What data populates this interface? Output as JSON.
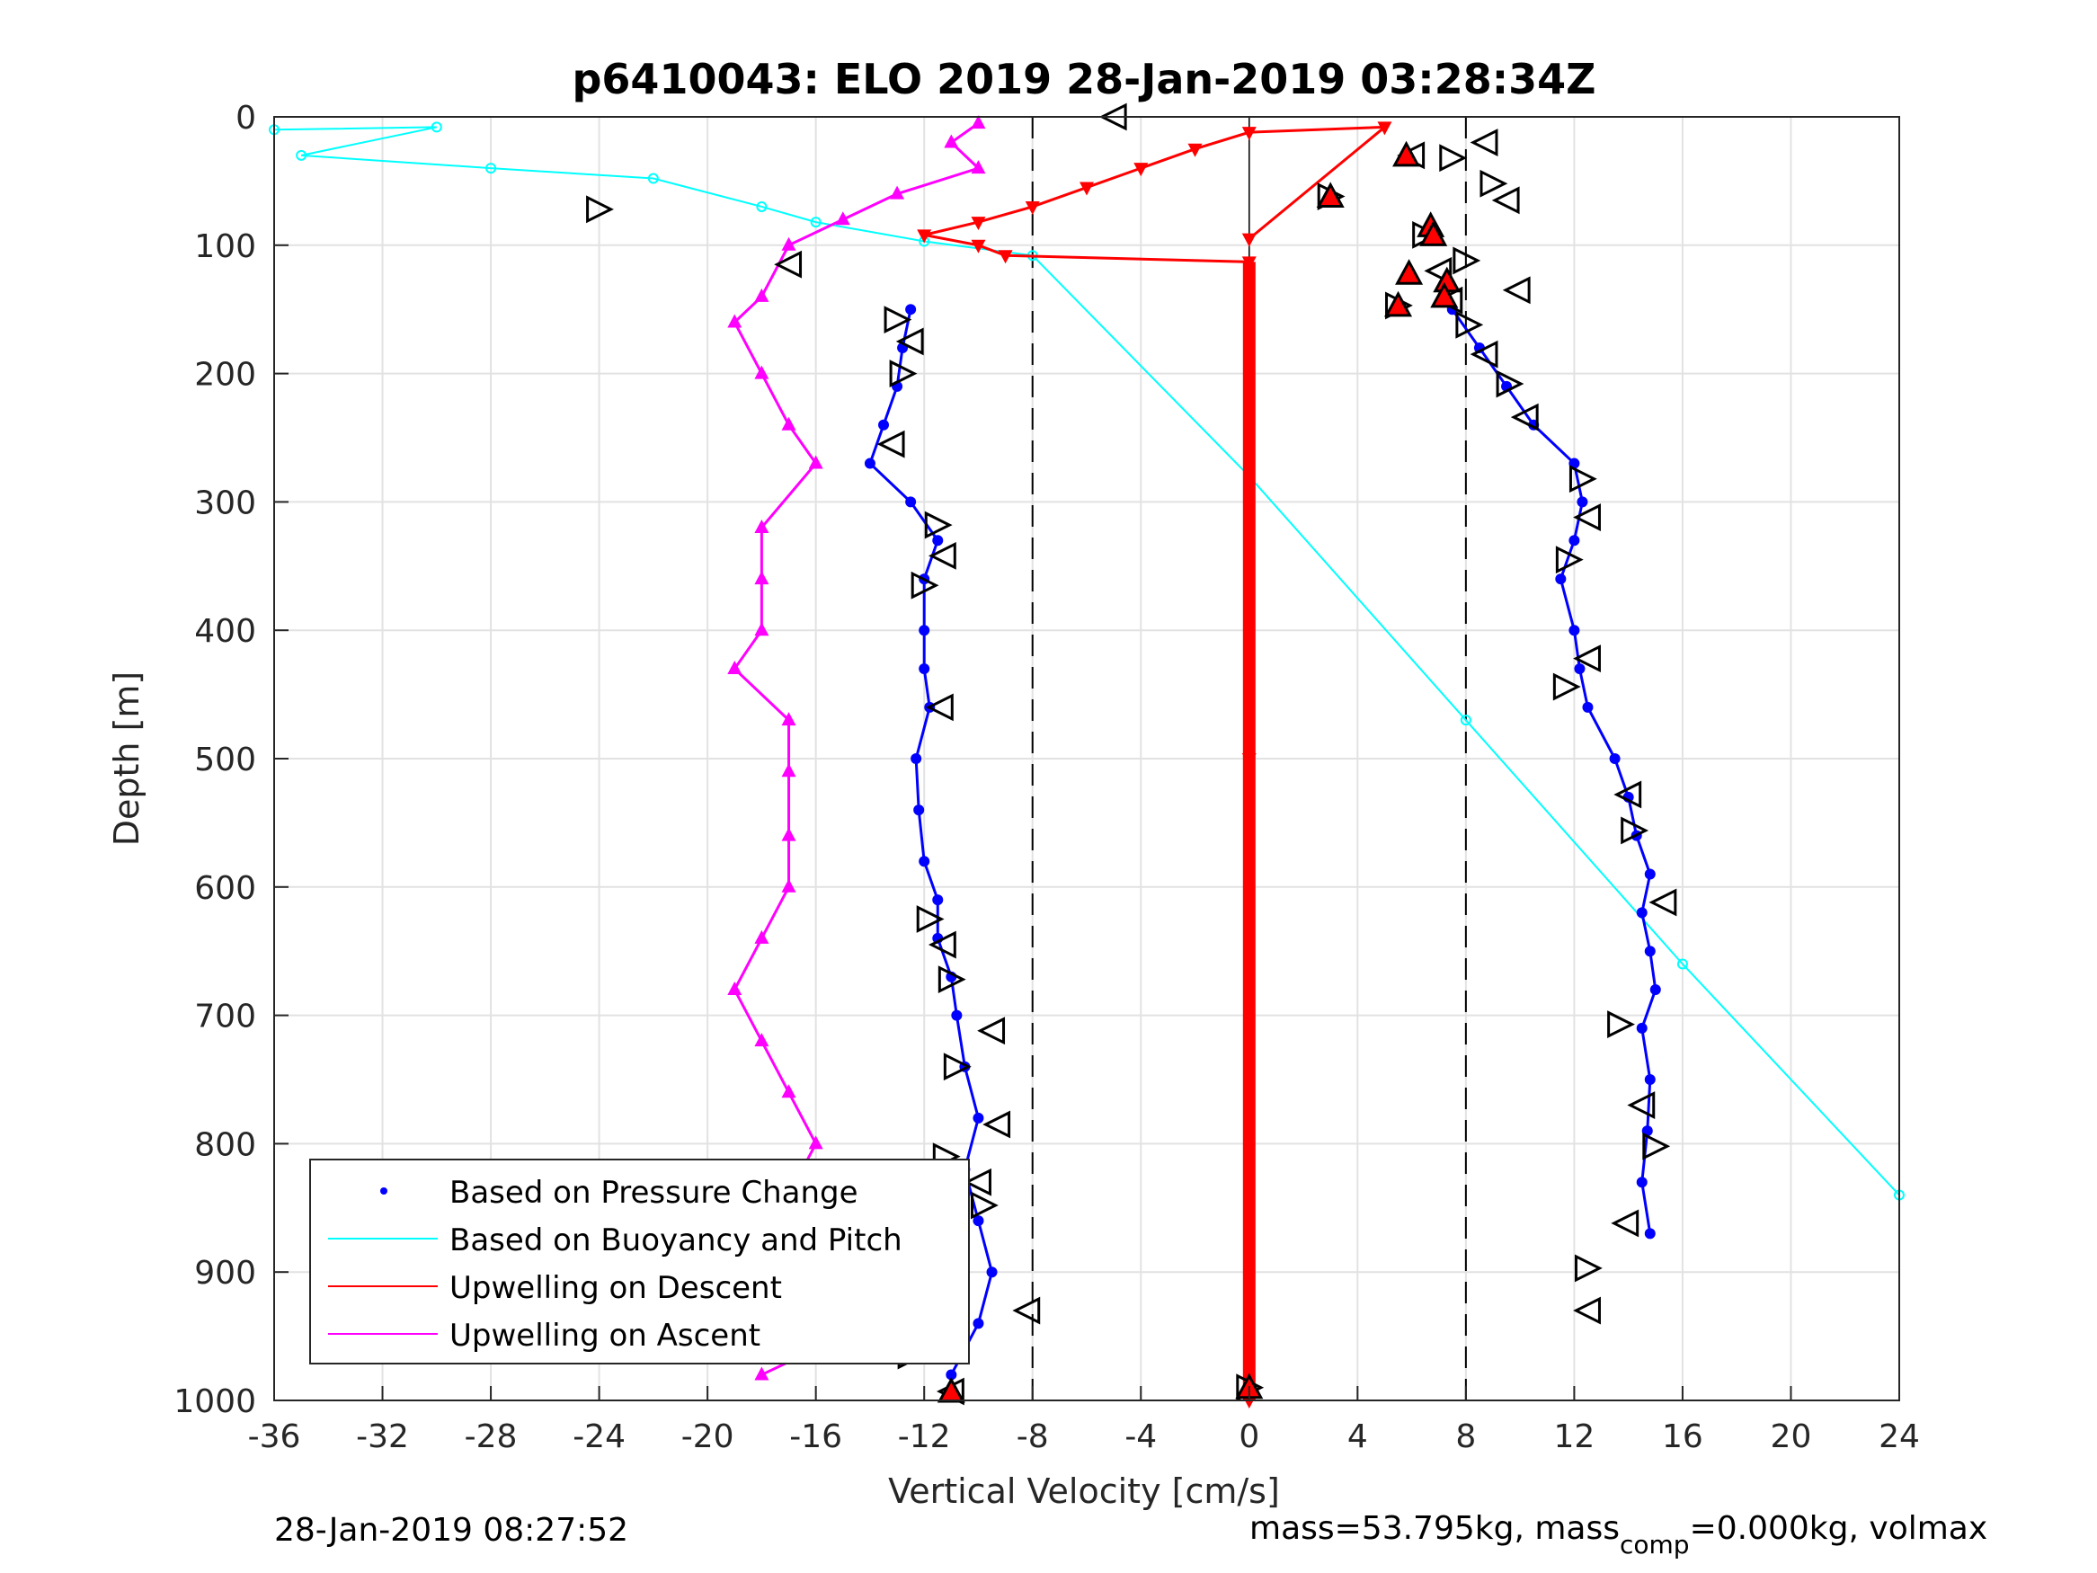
{
  "chart_data": {
    "type": "scatter",
    "title": "p6410043: ELO 2019 28-Jan-2019 03:28:34Z",
    "xlabel": "Vertical Velocity [cm/s]",
    "ylabel": "Depth [m]",
    "xlim": [
      -36,
      24
    ],
    "ylim": [
      1000,
      0
    ],
    "y_reversed": true,
    "grid": true,
    "x_ticks": [
      "-36",
      "-32",
      "-28",
      "-24",
      "-20",
      "-16",
      "-12",
      "-8",
      "-4",
      "0",
      "4",
      "8",
      "12",
      "16",
      "20",
      "24"
    ],
    "y_ticks": [
      "0",
      "100",
      "200",
      "300",
      "400",
      "500",
      "600",
      "700",
      "800",
      "900",
      "1000"
    ],
    "reference_lines": {
      "dashed_x": [
        -8,
        8
      ],
      "solid_x": [
        0
      ]
    },
    "legend": {
      "position": "lower-left",
      "entries": [
        "Based on Pressure Change",
        "Based on Buoyancy and Pitch",
        "Upwelling on Descent",
        "Upwelling on Ascent"
      ]
    },
    "colors": {
      "pressure": "#0000ff",
      "buoyancy": "#00ffff",
      "upwell_descent": "#ff0000",
      "upwell_ascent": "#ff00ff"
    },
    "series": [
      {
        "name": "Based on Pressure Change",
        "profile": "descent",
        "points": [
          [
            -12.5,
            150
          ],
          [
            -12.8,
            180
          ],
          [
            -13.0,
            210
          ],
          [
            -13.5,
            240
          ],
          [
            -14.0,
            270
          ],
          [
            -12.5,
            300
          ],
          [
            -11.5,
            330
          ],
          [
            -12.0,
            360
          ],
          [
            -12.0,
            400
          ],
          [
            -12.0,
            430
          ],
          [
            -11.8,
            460
          ],
          [
            -12.3,
            500
          ],
          [
            -12.2,
            540
          ],
          [
            -12.0,
            580
          ],
          [
            -11.5,
            610
          ],
          [
            -11.5,
            640
          ],
          [
            -11.0,
            670
          ],
          [
            -10.8,
            700
          ],
          [
            -10.5,
            740
          ],
          [
            -10.0,
            780
          ],
          [
            -10.5,
            820
          ],
          [
            -10.0,
            860
          ],
          [
            -9.5,
            900
          ],
          [
            -10.0,
            940
          ],
          [
            -11.0,
            980
          ]
        ]
      },
      {
        "name": "Based on Pressure Change",
        "profile": "ascent",
        "points": [
          [
            7.5,
            150
          ],
          [
            8.5,
            180
          ],
          [
            9.5,
            210
          ],
          [
            10.5,
            240
          ],
          [
            12.0,
            270
          ],
          [
            12.3,
            300
          ],
          [
            12.0,
            330
          ],
          [
            11.5,
            360
          ],
          [
            12.0,
            400
          ],
          [
            12.2,
            430
          ],
          [
            12.5,
            460
          ],
          [
            13.5,
            500
          ],
          [
            14.0,
            530
          ],
          [
            14.3,
            560
          ],
          [
            14.8,
            590
          ],
          [
            14.5,
            620
          ],
          [
            14.8,
            650
          ],
          [
            15.0,
            680
          ],
          [
            14.5,
            710
          ],
          [
            14.8,
            750
          ],
          [
            14.7,
            790
          ],
          [
            14.5,
            830
          ],
          [
            14.8,
            870
          ]
        ]
      },
      {
        "name": "Based on Buoyancy and Pitch",
        "points": [
          [
            -36,
            10
          ],
          [
            -30,
            8
          ],
          [
            -35,
            30
          ],
          [
            -28,
            40
          ],
          [
            -22,
            48
          ],
          [
            -18,
            70
          ],
          [
            -16,
            82
          ],
          [
            -12,
            97
          ],
          [
            -8,
            108
          ],
          [
            0,
            280
          ],
          [
            8,
            470
          ],
          [
            16,
            660
          ],
          [
            24,
            840
          ]
        ]
      },
      {
        "name": "Upwelling on Descent",
        "points": [
          [
            0,
            95
          ],
          [
            5,
            8
          ],
          [
            0,
            12
          ],
          [
            -2,
            25
          ],
          [
            -4,
            40
          ],
          [
            -6,
            55
          ],
          [
            -8,
            70
          ],
          [
            -10,
            82
          ],
          [
            -12,
            92
          ],
          [
            -10,
            100
          ],
          [
            -9,
            108
          ],
          [
            0,
            113
          ],
          [
            0,
            500
          ],
          [
            0,
            1000
          ]
        ]
      },
      {
        "name": "Upwelling on Ascent",
        "points": [
          [
            -10,
            5
          ],
          [
            -11,
            20
          ],
          [
            -10,
            40
          ],
          [
            -13,
            60
          ],
          [
            -15,
            80
          ],
          [
            -17,
            100
          ],
          [
            -18,
            140
          ],
          [
            -19,
            160
          ],
          [
            -18,
            200
          ],
          [
            -17,
            240
          ],
          [
            -16,
            270
          ],
          [
            -18,
            320
          ],
          [
            -18,
            360
          ],
          [
            -18,
            400
          ],
          [
            -19,
            430
          ],
          [
            -17,
            470
          ],
          [
            -17,
            510
          ],
          [
            -17,
            560
          ],
          [
            -17,
            600
          ],
          [
            -18,
            640
          ],
          [
            -19,
            680
          ],
          [
            -18,
            720
          ],
          [
            -17,
            760
          ],
          [
            -16,
            800
          ],
          [
            -17,
            840
          ],
          [
            -16,
            880
          ],
          [
            -17,
            920
          ],
          [
            -16,
            960
          ],
          [
            -18,
            980
          ]
        ]
      }
    ],
    "triangles": [
      [
        -5,
        0
      ],
      [
        -24,
        72
      ],
      [
        -17,
        115
      ],
      [
        -13,
        158
      ],
      [
        -12.5,
        175
      ],
      [
        -12.8,
        200
      ],
      [
        -13.2,
        255
      ],
      [
        -11.5,
        318
      ],
      [
        -11.3,
        342
      ],
      [
        -12.0,
        365
      ],
      [
        -11.4,
        460
      ],
      [
        -11.8,
        625
      ],
      [
        -11.3,
        645
      ],
      [
        -11.0,
        672
      ],
      [
        -9.5,
        712
      ],
      [
        -10.8,
        740
      ],
      [
        -9.3,
        785
      ],
      [
        -11.2,
        810
      ],
      [
        -10.0,
        830
      ],
      [
        -9.8,
        848
      ],
      [
        -11.0,
        878
      ],
      [
        -12.0,
        905
      ],
      [
        -8.2,
        930
      ],
      [
        -12.5,
        965
      ],
      [
        -11.0,
        993
      ],
      [
        3.0,
        62
      ],
      [
        6.0,
        30
      ],
      [
        7.5,
        32
      ],
      [
        8.7,
        20
      ],
      [
        9.0,
        52
      ],
      [
        9.5,
        65
      ],
      [
        6.5,
        92
      ],
      [
        7.0,
        120
      ],
      [
        8.0,
        112
      ],
      [
        9.9,
        135
      ],
      [
        5.5,
        147
      ],
      [
        7.4,
        143
      ],
      [
        8.1,
        162
      ],
      [
        8.7,
        185
      ],
      [
        9.6,
        208
      ],
      [
        10.2,
        234
      ],
      [
        12.3,
        282
      ],
      [
        12.5,
        312
      ],
      [
        11.8,
        345
      ],
      [
        12.5,
        422
      ],
      [
        11.7,
        444
      ],
      [
        14.0,
        528
      ],
      [
        14.2,
        556
      ],
      [
        15.3,
        612
      ],
      [
        13.7,
        707
      ],
      [
        14.5,
        770
      ],
      [
        15.0,
        802
      ],
      [
        13.9,
        862
      ],
      [
        12.5,
        897
      ],
      [
        12.5,
        930
      ],
      [
        0,
        990
      ]
    ],
    "red_triangles": [
      [
        3.0,
        62
      ],
      [
        5.8,
        30
      ],
      [
        6.7,
        85
      ],
      [
        6.8,
        92
      ],
      [
        5.9,
        122
      ],
      [
        7.3,
        128
      ],
      [
        7.2,
        140
      ],
      [
        5.5,
        147
      ],
      [
        0,
        990
      ],
      [
        -11.0,
        993
      ]
    ]
  },
  "footer": {
    "timestamp": "28-Jan-2019 08:27:52",
    "mass_prefix": "mass=53.795kg, mass",
    "mass_sub": "comp",
    "mass_suffix": "=0.000kg, volmax"
  }
}
